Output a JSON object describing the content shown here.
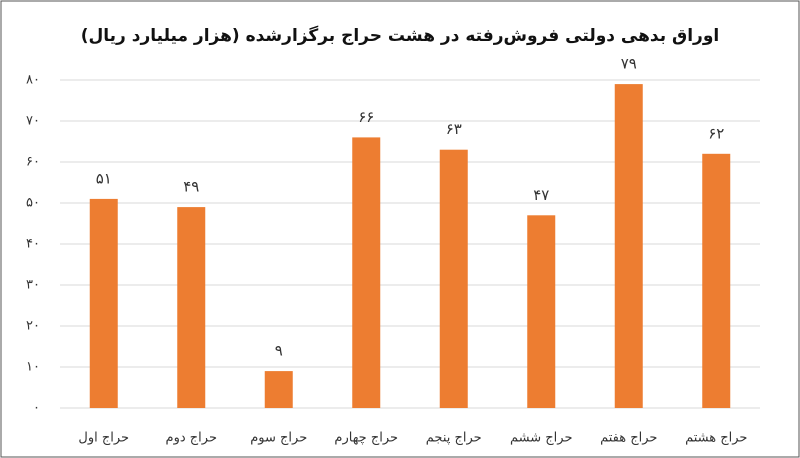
{
  "chart_data": {
    "type": "bar",
    "title": "اوراق بدهی دولتی فروش‌رفته در هشت حراج برگزارشده (هزار میلیارد ریال)",
    "categories": [
      "حراج اول",
      "حراج دوم",
      "حراج سوم",
      "حراج چهارم",
      "حراج پنجم",
      "حراج ششم",
      "حراج هفتم",
      "حراج هشتم"
    ],
    "values": [
      51,
      49,
      9,
      66,
      63,
      47,
      79,
      62
    ],
    "value_labels": [
      "۵۱",
      "۴۹",
      "۹",
      "۶۶",
      "۶۳",
      "۴۷",
      "۷۹",
      "۶۲"
    ],
    "color": "#ed7d31",
    "ylim": [
      0,
      80
    ],
    "yticks": [
      {
        "value": 0,
        "label": "۰"
      },
      {
        "value": 10,
        "label": "۱۰"
      },
      {
        "value": 20,
        "label": "۲۰"
      },
      {
        "value": 30,
        "label": "۳۰"
      },
      {
        "value": 40,
        "label": "۴۰"
      },
      {
        "value": 50,
        "label": "۵۰"
      },
      {
        "value": 60,
        "label": "۶۰"
      },
      {
        "value": 70,
        "label": "۷۰"
      },
      {
        "value": 80,
        "label": "۸۰"
      }
    ],
    "grid": true
  }
}
